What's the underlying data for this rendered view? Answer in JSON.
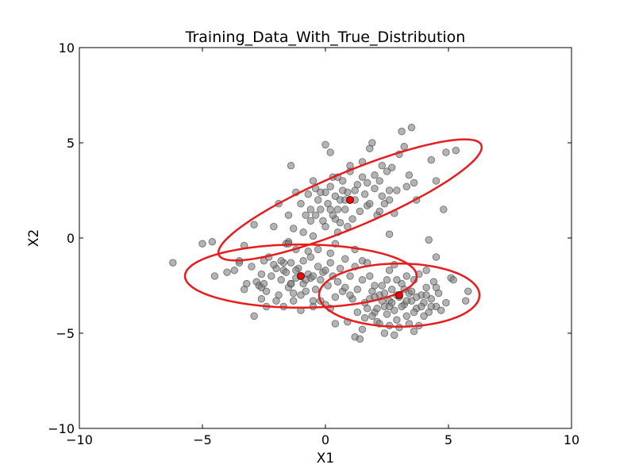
{
  "chart_data": {
    "type": "scatter",
    "title": "Training_Data_With_True_Distribution",
    "xlabel": "X1",
    "ylabel": "X2",
    "xlim": [
      -10,
      10
    ],
    "ylim": [
      -10,
      10
    ],
    "xticks": [
      "−10",
      "−5",
      "0",
      "5",
      "10"
    ],
    "yticks": [
      "10",
      "5",
      "0",
      "−5",
      "−10"
    ],
    "xtick_values": [
      -10,
      -5,
      0,
      5,
      10
    ],
    "ytick_values": [
      10,
      5,
      0,
      -5,
      -10
    ],
    "grid": false,
    "colors": {
      "points": "#808080",
      "point_edge": "#333333",
      "ellipses": "#e81c1c",
      "means": "#ff0000"
    },
    "series": [
      {
        "points": [
          [
            -6.2,
            -1.3
          ],
          [
            -5.0,
            -0.3
          ],
          [
            -4.6,
            -0.2
          ],
          [
            -4.5,
            -2.0
          ],
          [
            -4.0,
            -1.8
          ],
          [
            -3.7,
            -1.7
          ],
          [
            -3.5,
            -1.2
          ],
          [
            -3.3,
            -2.7
          ],
          [
            -3.2,
            -2.4
          ],
          [
            -3.0,
            -1.5
          ],
          [
            -2.9,
            0.7
          ],
          [
            -2.9,
            -4.1
          ],
          [
            -2.8,
            -2.3
          ],
          [
            -2.7,
            -2.5
          ],
          [
            -2.6,
            -2.6
          ],
          [
            -2.6,
            -1.9
          ],
          [
            -2.5,
            -1.2
          ],
          [
            -2.4,
            -2.8
          ],
          [
            -2.3,
            -1.0
          ],
          [
            -2.2,
            -2.0
          ],
          [
            -2.1,
            0.6
          ],
          [
            -2.0,
            -1.6
          ],
          [
            -1.9,
            -3.0
          ],
          [
            -1.8,
            -2.2
          ],
          [
            -1.7,
            -1.7
          ],
          [
            -1.6,
            -1.8
          ],
          [
            -1.5,
            -0.2
          ],
          [
            -1.5,
            -2.6
          ],
          [
            -1.4,
            -1.3
          ],
          [
            -1.3,
            -3.3
          ],
          [
            -1.2,
            -2.1
          ],
          [
            -1.1,
            -1.6
          ],
          [
            -1.0,
            -3.0
          ],
          [
            -0.9,
            -2.4
          ],
          [
            -0.8,
            -2.8
          ],
          [
            -0.7,
            -1.9
          ],
          [
            -0.6,
            -1.0
          ],
          [
            -0.5,
            -3.6
          ],
          [
            -0.4,
            -2.7
          ],
          [
            -0.3,
            -1.5
          ],
          [
            -0.2,
            -2.2
          ],
          [
            -0.1,
            -1.8
          ],
          [
            0.0,
            -3.5
          ],
          [
            0.1,
            -2.5
          ],
          [
            0.2,
            -1.3
          ],
          [
            0.3,
            -2.0
          ],
          [
            0.4,
            -3.1
          ],
          [
            0.5,
            -2.3
          ],
          [
            0.6,
            -1.6
          ],
          [
            0.7,
            -2.8
          ],
          [
            0.8,
            -1.1
          ],
          [
            1.0,
            -2.0
          ],
          [
            1.1,
            -3.2
          ],
          [
            1.2,
            -1.5
          ],
          [
            1.3,
            -2.7
          ],
          [
            1.5,
            -1.2
          ],
          [
            -1.6,
            -0.3
          ],
          [
            -1.3,
            -2.9
          ],
          [
            -1.7,
            -1.3
          ],
          [
            -2.0,
            -3.3
          ],
          [
            -1.4,
            -2.4
          ],
          [
            -0.9,
            -1.2
          ],
          [
            -0.6,
            -2.1
          ],
          [
            -0.2,
            -3.3
          ],
          [
            0.2,
            -0.8
          ],
          [
            0.4,
            -4.5
          ],
          [
            0.9,
            -4.4
          ],
          [
            0.2,
            -3.7
          ],
          [
            -1.4,
            -2.4
          ],
          [
            -2.5,
            -2.4
          ],
          [
            -3.5,
            -1.3
          ],
          [
            -2.1,
            -1.4
          ],
          [
            -1.2,
            -0.6
          ],
          [
            -0.7,
            -0.7
          ],
          [
            -0.3,
            -0.6
          ],
          [
            -0.5,
            -2.0
          ],
          [
            -1.8,
            -1.2
          ],
          [
            -2.6,
            -3.2
          ],
          [
            -2.4,
            -3.6
          ],
          [
            -1.7,
            -3.6
          ],
          [
            -1.0,
            -3.8
          ],
          [
            -0.5,
            -3.3
          ],
          [
            0.8,
            -2.6
          ],
          [
            1.7,
            -1.3
          ],
          [
            1.2,
            -0.6
          ],
          [
            0.0,
            -1.7
          ],
          [
            -1.2,
            -1.7
          ],
          [
            -0.8,
            -2.2
          ],
          [
            -3.3,
            -0.4
          ],
          [
            -1.5,
            -0.3
          ],
          [
            1.0,
            -3.0
          ],
          [
            0.0,
            4.9
          ],
          [
            0.2,
            4.5
          ],
          [
            0.4,
            1.0
          ],
          [
            0.5,
            0.3
          ],
          [
            0.6,
            2.0
          ],
          [
            0.7,
            3.0
          ],
          [
            0.8,
            1.5
          ],
          [
            0.9,
            2.4
          ],
          [
            1.0,
            3.5
          ],
          [
            1.1,
            1.0
          ],
          [
            1.2,
            2.0
          ],
          [
            1.3,
            2.8
          ],
          [
            1.4,
            1.4
          ],
          [
            1.5,
            3.2
          ],
          [
            1.6,
            2.3
          ],
          [
            1.7,
            1.7
          ],
          [
            1.8,
            4.7
          ],
          [
            1.9,
            5.0
          ],
          [
            2.0,
            2.6
          ],
          [
            2.1,
            1.2
          ],
          [
            2.2,
            3.0
          ],
          [
            2.3,
            2.2
          ],
          [
            2.4,
            1.8
          ],
          [
            2.5,
            3.5
          ],
          [
            2.6,
            2.0
          ],
          [
            2.7,
            3.7
          ],
          [
            2.8,
            1.3
          ],
          [
            2.9,
            2.5
          ],
          [
            3.0,
            4.4
          ],
          [
            3.1,
            5.6
          ],
          [
            3.2,
            4.8
          ],
          [
            3.4,
            3.3
          ],
          [
            3.5,
            5.8
          ],
          [
            3.6,
            2.9
          ],
          [
            3.7,
            2.0
          ],
          [
            4.3,
            4.1
          ],
          [
            4.5,
            3.0
          ],
          [
            4.8,
            1.5
          ],
          [
            4.9,
            4.5
          ],
          [
            5.3,
            4.6
          ],
          [
            -0.5,
            3.0
          ],
          [
            -0.4,
            2.6
          ],
          [
            -0.3,
            2.0
          ],
          [
            -0.2,
            1.5
          ],
          [
            -0.1,
            0.9
          ],
          [
            0.0,
            2.4
          ],
          [
            0.1,
            1.8
          ],
          [
            0.2,
            2.7
          ],
          [
            0.3,
            3.2
          ],
          [
            0.4,
            2.2
          ],
          [
            0.5,
            1.5
          ],
          [
            0.6,
            0.8
          ],
          [
            0.7,
            2.5
          ],
          [
            -1.2,
            2.4
          ],
          [
            -1.0,
            1.8
          ],
          [
            -0.8,
            1.2
          ],
          [
            -0.6,
            0.9
          ],
          [
            -1.5,
            1.2
          ],
          [
            -1.4,
            3.8
          ],
          [
            -1.9,
            1.8
          ],
          [
            -1.3,
            0.5
          ],
          [
            -0.9,
            0.3
          ],
          [
            -0.5,
            0.1
          ],
          [
            0.0,
            0.6
          ],
          [
            0.4,
            -0.3
          ],
          [
            2.6,
            0.2
          ],
          [
            2.0,
            3.3
          ],
          [
            1.5,
            4.0
          ],
          [
            1.0,
            3.8
          ],
          [
            2.3,
            3.8
          ],
          [
            2.6,
            2.5
          ],
          [
            3.3,
            2.7
          ],
          [
            1.8,
            1.8
          ],
          [
            1.2,
            2.5
          ],
          [
            0.9,
            0.6
          ],
          [
            -0.2,
            2.4
          ],
          [
            -0.7,
            2.3
          ],
          [
            -0.4,
            1.2
          ],
          [
            0.3,
            1.2
          ],
          [
            0.8,
            2.0
          ],
          [
            1.7,
            2.9
          ],
          [
            2.2,
            1.4
          ],
          [
            0.5,
            3.2
          ],
          [
            0.2,
            1.5
          ],
          [
            -0.6,
            1.5
          ],
          [
            1.2,
            -5.2
          ],
          [
            1.4,
            -5.3
          ],
          [
            1.5,
            -4.8
          ],
          [
            1.6,
            -4.2
          ],
          [
            1.7,
            -3.7
          ],
          [
            1.8,
            -3.2
          ],
          [
            1.9,
            -2.8
          ],
          [
            2.0,
            -3.9
          ],
          [
            2.1,
            -4.4
          ],
          [
            2.2,
            -3.0
          ],
          [
            2.3,
            -2.5
          ],
          [
            2.4,
            -3.6
          ],
          [
            2.5,
            -4.0
          ],
          [
            2.6,
            -3.3
          ],
          [
            2.7,
            -2.7
          ],
          [
            2.8,
            -3.8
          ],
          [
            2.9,
            -4.3
          ],
          [
            3.0,
            -3.1
          ],
          [
            3.1,
            -2.4
          ],
          [
            3.2,
            -3.5
          ],
          [
            3.3,
            -4.1
          ],
          [
            3.4,
            -2.9
          ],
          [
            3.5,
            -3.3
          ],
          [
            3.6,
            -2.2
          ],
          [
            3.7,
            -3.7
          ],
          [
            3.8,
            -4.6
          ],
          [
            3.9,
            -3.0
          ],
          [
            4.0,
            -3.4
          ],
          [
            4.1,
            -2.6
          ],
          [
            4.2,
            -3.9
          ],
          [
            4.3,
            -3.2
          ],
          [
            4.4,
            -2.3
          ],
          [
            4.5,
            -3.6
          ],
          [
            4.6,
            -2.9
          ],
          [
            4.7,
            -3.8
          ],
          [
            4.9,
            -3.4
          ],
          [
            5.1,
            -2.1
          ],
          [
            5.2,
            -2.2
          ],
          [
            5.8,
            -2.8
          ],
          [
            5.7,
            -3.3
          ],
          [
            1.3,
            -3.9
          ],
          [
            1.6,
            -3.4
          ],
          [
            2.0,
            -3.1
          ],
          [
            2.4,
            -2.9
          ],
          [
            2.6,
            -3.6
          ],
          [
            2.9,
            -3.0
          ],
          [
            3.1,
            -3.6
          ],
          [
            3.3,
            -3.3
          ],
          [
            3.5,
            -2.8
          ],
          [
            3.7,
            -3.1
          ],
          [
            3.9,
            -3.6
          ],
          [
            4.1,
            -3.0
          ],
          [
            4.3,
            -3.6
          ],
          [
            4.5,
            -2.6
          ],
          [
            2.2,
            -4.5
          ],
          [
            2.6,
            -4.6
          ],
          [
            3.0,
            -4.7
          ],
          [
            3.4,
            -4.5
          ],
          [
            3.6,
            -4.9
          ],
          [
            2.4,
            -5.0
          ],
          [
            2.8,
            -5.1
          ],
          [
            2.5,
            -2.2
          ],
          [
            2.9,
            -2.2
          ],
          [
            3.3,
            -2.0
          ],
          [
            3.8,
            -1.9
          ],
          [
            4.1,
            -1.7
          ],
          [
            4.5,
            -1.0
          ],
          [
            4.2,
            -0.1
          ],
          [
            2.8,
            -1.4
          ],
          [
            2.6,
            -1.7
          ],
          [
            1.8,
            -2.0
          ],
          [
            1.5,
            -2.2
          ],
          [
            2.0,
            -2.5
          ],
          [
            2.3,
            -3.3
          ],
          [
            2.7,
            -3.4
          ],
          [
            3.2,
            -2.7
          ],
          [
            3.6,
            -3.9
          ],
          [
            4.0,
            -4.1
          ],
          [
            1.9,
            -4.1
          ],
          [
            2.1,
            -3.7
          ]
        ]
      }
    ],
    "means": [
      [
        1.0,
        2.0
      ],
      [
        -1.0,
        -2.0
      ],
      [
        3.0,
        -3.0
      ]
    ],
    "ellipses": [
      {
        "center": [
          1.0,
          2.0
        ],
        "semi_axes": [
          6.07,
          1.38
        ],
        "angle_deg": 29
      },
      {
        "center": [
          -1.0,
          -2.0
        ],
        "semi_axes": [
          4.71,
          1.66
        ],
        "angle_deg": 0
      },
      {
        "center": [
          3.0,
          -3.0
        ],
        "semi_axes": [
          3.26,
          1.66
        ],
        "angle_deg": 0
      }
    ]
  }
}
